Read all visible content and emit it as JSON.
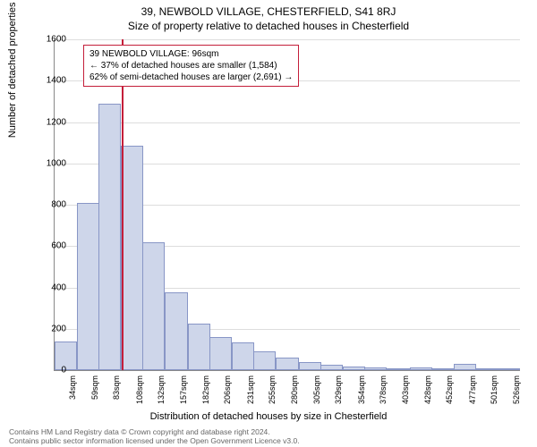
{
  "title_line1": "39, NEWBOLD VILLAGE, CHESTERFIELD, S41 8RJ",
  "title_line2": "Size of property relative to detached houses in Chesterfield",
  "y_axis_label": "Number of detached properties",
  "x_axis_label": "Distribution of detached houses by size in Chesterfield",
  "footer_line1": "Contains HM Land Registry data © Crown copyright and database right 2024.",
  "footer_line2": "Contains public sector information licensed under the Open Government Licence v3.0.",
  "info_box": {
    "line1": "39 NEWBOLD VILLAGE: 96sqm",
    "line2": "← 37% of detached houses are smaller (1,584)",
    "line3": "62% of semi-detached houses are larger (2,691) →"
  },
  "chart": {
    "type": "histogram",
    "background_color": "#ffffff",
    "grid_color": "#dddddd",
    "bar_fill": "#ced6ea",
    "bar_border": "#8896c6",
    "marker_color": "#c41e3a",
    "marker_x_value": 96,
    "ylim": [
      0,
      1600
    ],
    "ytick_step": 200,
    "x_tick_labels": [
      "34sqm",
      "59sqm",
      "83sqm",
      "108sqm",
      "132sqm",
      "157sqm",
      "182sqm",
      "206sqm",
      "231sqm",
      "255sqm",
      "280sqm",
      "305sqm",
      "329sqm",
      "354sqm",
      "378sqm",
      "403sqm",
      "428sqm",
      "452sqm",
      "477sqm",
      "501sqm",
      "526sqm"
    ],
    "x_tick_values": [
      34,
      59,
      83,
      108,
      132,
      157,
      182,
      206,
      231,
      255,
      280,
      305,
      329,
      354,
      378,
      403,
      428,
      452,
      477,
      501,
      526
    ],
    "x_range": [
      22,
      538
    ],
    "values": [
      140,
      810,
      1290,
      1085,
      620,
      375,
      225,
      160,
      135,
      90,
      60,
      40,
      25,
      18,
      12,
      10,
      12,
      6,
      30,
      4,
      3
    ],
    "bar_width_ratio": 1.0,
    "title_fontsize": 12,
    "label_fontsize": 11,
    "tick_fontsize": 10
  }
}
